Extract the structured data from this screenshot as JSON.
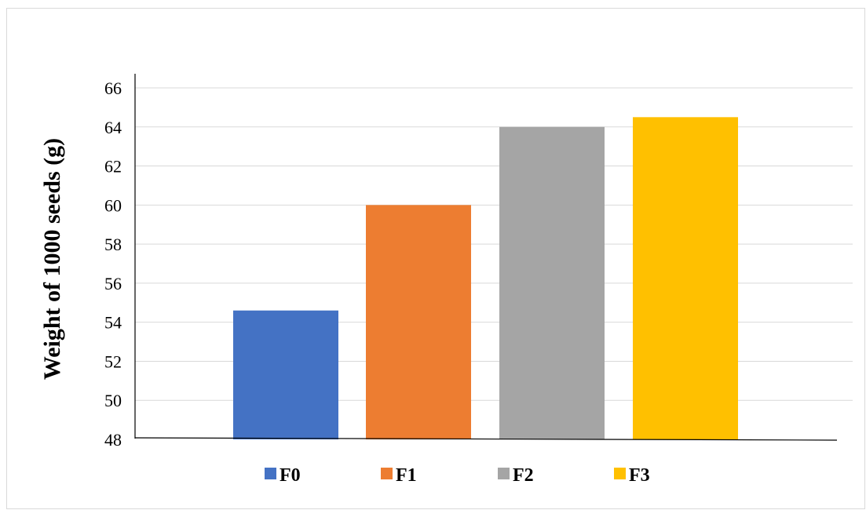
{
  "chart_data": {
    "type": "bar",
    "title": "",
    "xlabel": "",
    "ylabel": "Weight of 1000 seeds (g)",
    "ylim": [
      48,
      66
    ],
    "yticks": [
      48,
      50,
      52,
      54,
      56,
      58,
      60,
      62,
      64,
      66
    ],
    "grid": true,
    "legend": "bottom",
    "series": [
      {
        "name": "F0",
        "value": 54.6,
        "color": "#4472C4"
      },
      {
        "name": "F1",
        "value": 60.0,
        "color": "#ED7D31"
      },
      {
        "name": "F2",
        "value": 64.0,
        "color": "#A5A5A5"
      },
      {
        "name": "F3",
        "value": 64.5,
        "color": "#FFC000"
      }
    ]
  }
}
